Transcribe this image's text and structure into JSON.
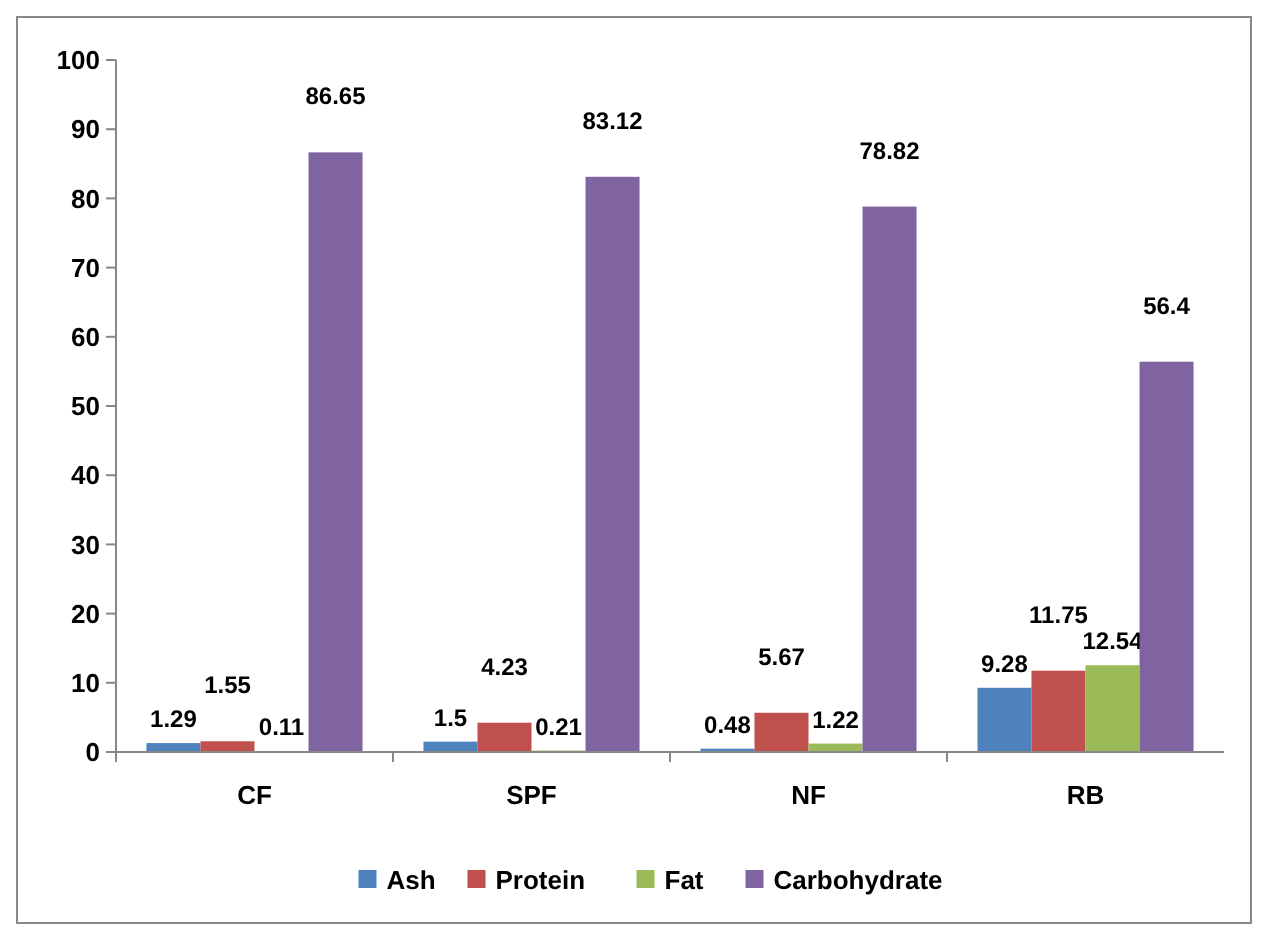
{
  "chart_data": {
    "type": "bar",
    "categories": [
      "CF",
      "SPF",
      "NF",
      "RB"
    ],
    "series": [
      {
        "name": "Ash",
        "color": "#4f81bd",
        "values": [
          1.29,
          1.5,
          0.48,
          9.28
        ]
      },
      {
        "name": "Protein",
        "color": "#c0504d",
        "values": [
          1.55,
          4.23,
          5.67,
          11.75
        ]
      },
      {
        "name": "Fat",
        "color": "#9bbb59",
        "values": [
          0.11,
          0.21,
          1.22,
          12.54
        ]
      },
      {
        "name": "Carbohydrate",
        "color": "#8064a2",
        "values": [
          86.65,
          83.12,
          78.82,
          56.4
        ]
      }
    ],
    "ylim": [
      0,
      100
    ],
    "yticks": [
      0,
      10,
      20,
      30,
      40,
      50,
      60,
      70,
      80,
      90,
      100
    ],
    "data_labels": true,
    "legend": "bottom",
    "grid": false
  }
}
